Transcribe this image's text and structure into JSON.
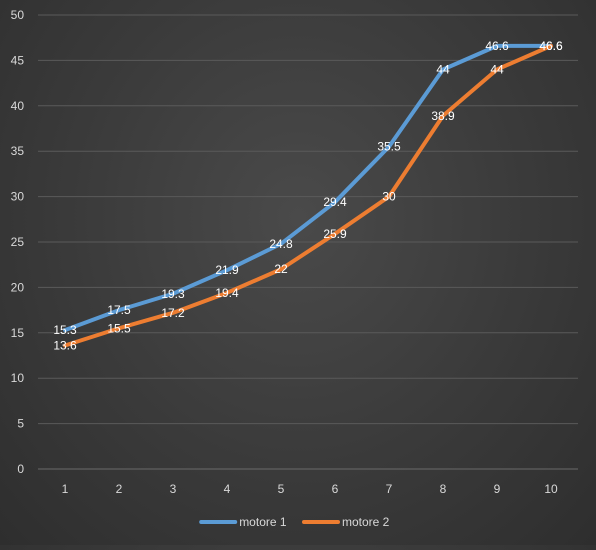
{
  "chart_data": {
    "type": "line",
    "title": "",
    "xlabel": "",
    "ylabel": "",
    "x": [
      1,
      2,
      3,
      4,
      5,
      6,
      7,
      8,
      9,
      10
    ],
    "ylim": [
      0,
      50
    ],
    "yticks": [
      0,
      5,
      10,
      15,
      20,
      25,
      30,
      35,
      40,
      45,
      50
    ],
    "grid": "horizontal",
    "legend_position": "bottom",
    "series": [
      {
        "name": "motore 1",
        "color": "#5b9bd5",
        "values": [
          15.3,
          17.5,
          19.3,
          21.9,
          24.8,
          29.4,
          35.5,
          44,
          46.6,
          46.6
        ],
        "labels": [
          "15.3",
          "17.5",
          "19.3",
          "21.9",
          "24.8",
          "29.4",
          "35.5",
          "44",
          "46.6",
          "46.6"
        ]
      },
      {
        "name": "motore 2",
        "color": "#ed7d31",
        "values": [
          13.6,
          15.5,
          17.2,
          19.4,
          22,
          25.9,
          30,
          38.9,
          44,
          46.6
        ],
        "labels": [
          "13.6",
          "15.5",
          "17.2",
          "19.4",
          "22",
          "25.9",
          "30",
          "38.9",
          "44",
          "46.6"
        ]
      }
    ],
    "colors": {
      "background": "#3c3c3c",
      "grid": "#5a5a5a",
      "text": "#d9d9d9",
      "label_text": "#ffffff"
    }
  }
}
